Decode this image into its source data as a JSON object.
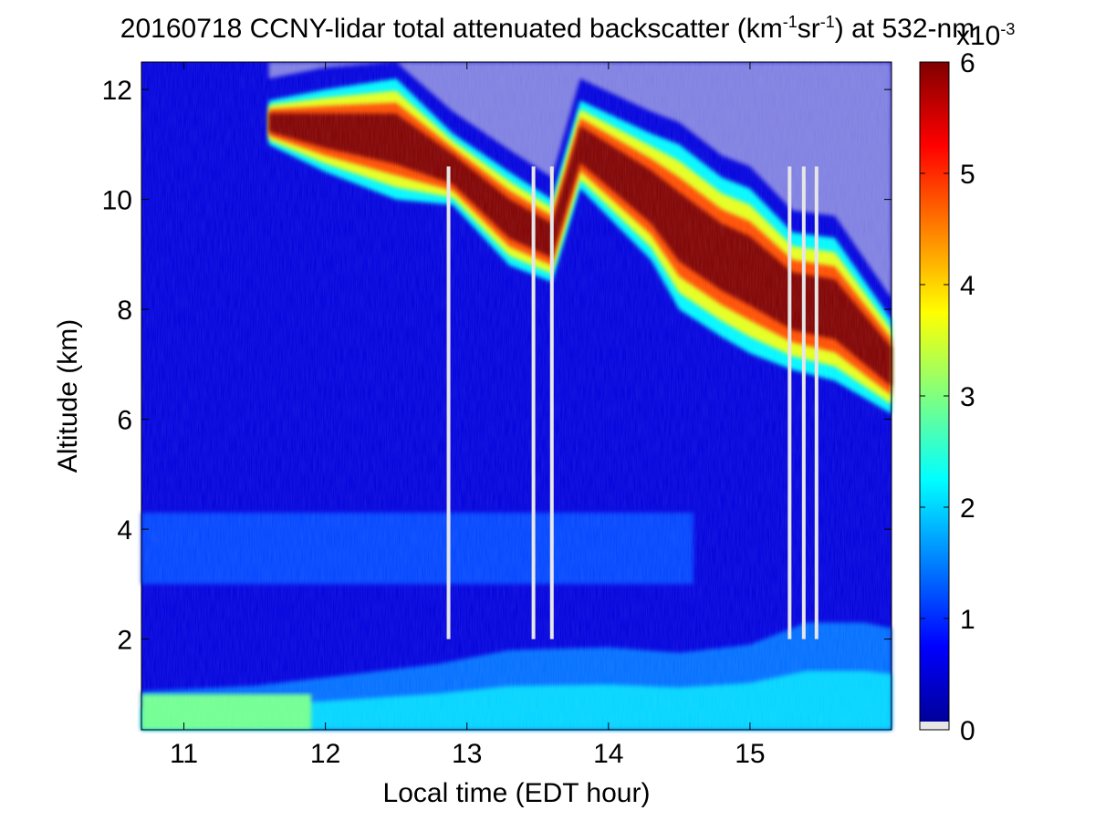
{
  "chart_data": {
    "type": "heatmap",
    "title_parts": {
      "pre": "20160718 CCNY-lidar total attenuated backscatter (km",
      "sup1": "-1",
      "mid": "sr",
      "sup2": "-1",
      "post": ") at 532-nm"
    },
    "xlabel": "Local time (EDT hour)",
    "ylabel": "Altitude (km)",
    "xlim": [
      10.7,
      16.0
    ],
    "ylim": [
      0.35,
      12.5
    ],
    "xticks": [
      11,
      12,
      13,
      14,
      15
    ],
    "xtick_labels": [
      "11",
      "12",
      "13",
      "14",
      "15"
    ],
    "yticks": [
      2,
      4,
      6,
      8,
      10,
      12
    ],
    "ytick_labels": [
      "2",
      "4",
      "6",
      "8",
      "10",
      "12"
    ],
    "colorbar": {
      "range": [
        0,
        6
      ],
      "ticks": [
        0,
        1,
        2,
        3,
        4,
        5,
        6
      ],
      "tick_labels": [
        "0",
        "1",
        "2",
        "3",
        "4",
        "5",
        "6"
      ],
      "exponent_base": "x10",
      "exponent_sup": "-3",
      "colormap": "jet",
      "below_range_color": "#e6e6e6"
    },
    "features": {
      "boundary_layer_top_km": [
        [
          10.7,
          1.05
        ],
        [
          11.5,
          1.15
        ],
        [
          12.0,
          1.3
        ],
        [
          12.8,
          1.55
        ],
        [
          13.3,
          1.8
        ],
        [
          14.0,
          1.85
        ],
        [
          14.5,
          1.75
        ],
        [
          15.0,
          1.9
        ],
        [
          15.4,
          2.3
        ],
        [
          15.8,
          2.3
        ],
        [
          16.0,
          2.2
        ]
      ],
      "residual_layer_km": [
        3.0,
        4.3
      ],
      "cirrus_base_km": [
        [
          11.6,
          11.0
        ],
        [
          12.0,
          10.5
        ],
        [
          12.5,
          10.0
        ],
        [
          12.9,
          9.9
        ],
        [
          13.3,
          8.8
        ],
        [
          13.6,
          8.5
        ],
        [
          13.8,
          10.2
        ],
        [
          14.3,
          8.9
        ],
        [
          14.5,
          8.0
        ],
        [
          14.8,
          7.5
        ],
        [
          15.0,
          7.2
        ],
        [
          15.3,
          6.9
        ],
        [
          15.6,
          6.7
        ],
        [
          16.0,
          6.1
        ]
      ],
      "cirrus_top_km": [
        [
          11.6,
          11.8
        ],
        [
          12.0,
          12.0
        ],
        [
          12.5,
          12.2
        ],
        [
          12.9,
          11.2
        ],
        [
          13.3,
          10.5
        ],
        [
          13.6,
          10.0
        ],
        [
          13.8,
          11.8
        ],
        [
          14.3,
          11.2
        ],
        [
          14.5,
          11.0
        ],
        [
          14.8,
          10.4
        ],
        [
          15.0,
          10.2
        ],
        [
          15.3,
          9.4
        ],
        [
          15.6,
          9.3
        ],
        [
          16.0,
          7.8
        ]
      ],
      "cirrus_core_value": 6.0,
      "blank_columns_hours": [
        12.87,
        13.47,
        13.6,
        15.28,
        15.38,
        15.47
      ]
    }
  }
}
